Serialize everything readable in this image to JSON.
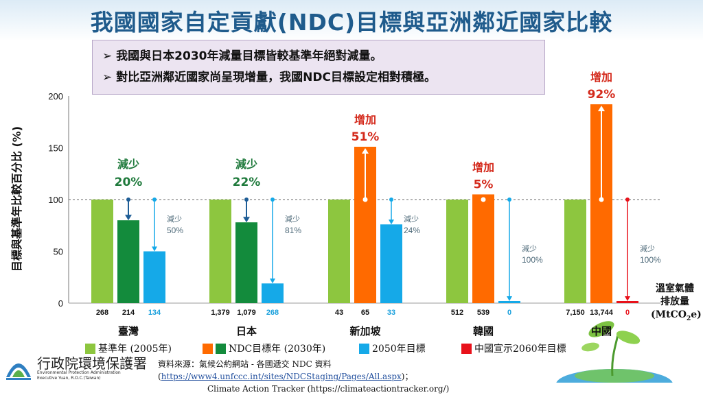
{
  "title": "我國國家自定貢獻(NDC)目標與亞洲鄰近國家比較",
  "notes": [
    "我國與日本2030年減量目標皆較基準年絕對減量。",
    "對比亞洲鄰近國家尚呈現增量，我國NDC目標設定相對積極。"
  ],
  "note_bullet": "➢",
  "chart_data": {
    "type": "bar",
    "ylabel": "目標與基準年比較百分比 (%)",
    "ylim": [
      0,
      200
    ],
    "yticks": [
      0,
      50,
      100,
      150,
      200
    ],
    "reference_line": 100,
    "units_label": [
      "溫室氣體",
      "排放量",
      "(MtCO2e)"
    ],
    "colors": {
      "base": "#8dc63f",
      "ndc_green": "#138b3c",
      "ndc_orange": "#ff6a00",
      "target_2050": "#15a9e8",
      "target_2060": "#e8121b",
      "decrease_arrow": "#1e5d96",
      "increase_arrow": "#ffffff",
      "decrease_text": "#1f7a3c",
      "increase_text": "#d42a1c",
      "small_note": "#4f6b7a",
      "emission_2050": "#1aa0dc"
    },
    "groups": [
      {
        "category": "臺灣",
        "bars": [
          {
            "kind": "base",
            "value": 100,
            "emission": "268"
          },
          {
            "kind": "ndc_green",
            "value": 80,
            "emission": "214"
          },
          {
            "kind": "target_2050",
            "value": 50,
            "emission": "134"
          }
        ],
        "ndc_label": [
          "減少",
          "20%"
        ],
        "ndc_label_type": "decrease",
        "target_label": [
          "減少",
          "50%"
        ]
      },
      {
        "category": "日本",
        "bars": [
          {
            "kind": "base",
            "value": 100,
            "emission": "1,379"
          },
          {
            "kind": "ndc_green",
            "value": 78,
            "emission": "1,079"
          },
          {
            "kind": "target_2050",
            "value": 19,
            "emission": "268"
          }
        ],
        "ndc_label": [
          "減少",
          "22%"
        ],
        "ndc_label_type": "decrease",
        "target_label": [
          "減少",
          "81%"
        ]
      },
      {
        "category": "新加坡",
        "bars": [
          {
            "kind": "base",
            "value": 100,
            "emission": "43"
          },
          {
            "kind": "ndc_orange",
            "value": 151,
            "emission": "65"
          },
          {
            "kind": "target_2050",
            "value": 76,
            "emission": "33"
          }
        ],
        "ndc_label": [
          "增加",
          "51%"
        ],
        "ndc_label_type": "increase",
        "target_label": [
          "減少",
          "24%"
        ]
      },
      {
        "category": "韓國",
        "bars": [
          {
            "kind": "base",
            "value": 100,
            "emission": "512"
          },
          {
            "kind": "ndc_orange",
            "value": 105,
            "emission": "539"
          },
          {
            "kind": "target_2050",
            "value": 0,
            "emission": "0"
          }
        ],
        "ndc_label": [
          "增加",
          "5%"
        ],
        "ndc_label_type": "increase",
        "target_label": [
          "減少",
          "100%"
        ]
      },
      {
        "category": "中國",
        "bars": [
          {
            "kind": "base",
            "value": 100,
            "emission": "7,150"
          },
          {
            "kind": "ndc_orange",
            "value": 192,
            "emission": "13,744"
          },
          {
            "kind": "target_2060",
            "value": 0,
            "emission": "0"
          }
        ],
        "ndc_label": [
          "增加",
          "92%"
        ],
        "ndc_label_type": "increase",
        "target_label": [
          "減少",
          "100%"
        ]
      }
    ],
    "legend": [
      {
        "colors": [
          "base"
        ],
        "label": "基準年 (2005年)"
      },
      {
        "colors": [
          "ndc_orange",
          "ndc_green"
        ],
        "label": "NDC目標年 (2030年)"
      },
      {
        "colors": [
          "target_2050"
        ],
        "label": "2050年目標"
      },
      {
        "colors": [
          "target_2060"
        ],
        "label": "中國宣示2060年目標"
      }
    ]
  },
  "source": {
    "prefix": "資料來源：氣候公約網站 - 各國遞交 NDC 資料 (",
    "link": "https://www4.unfccc.int/sites/NDCStaging/Pages/All.aspx",
    "suffix": ")；",
    "line2": "Climate Action Tracker (https://climateactiontracker.org/)"
  },
  "org": {
    "name_cn": "行政院環境保護署",
    "name_en1": "Environmental Protection Administration",
    "name_en2": "Executive Yuan, R.O.C.(Taiwan)"
  }
}
